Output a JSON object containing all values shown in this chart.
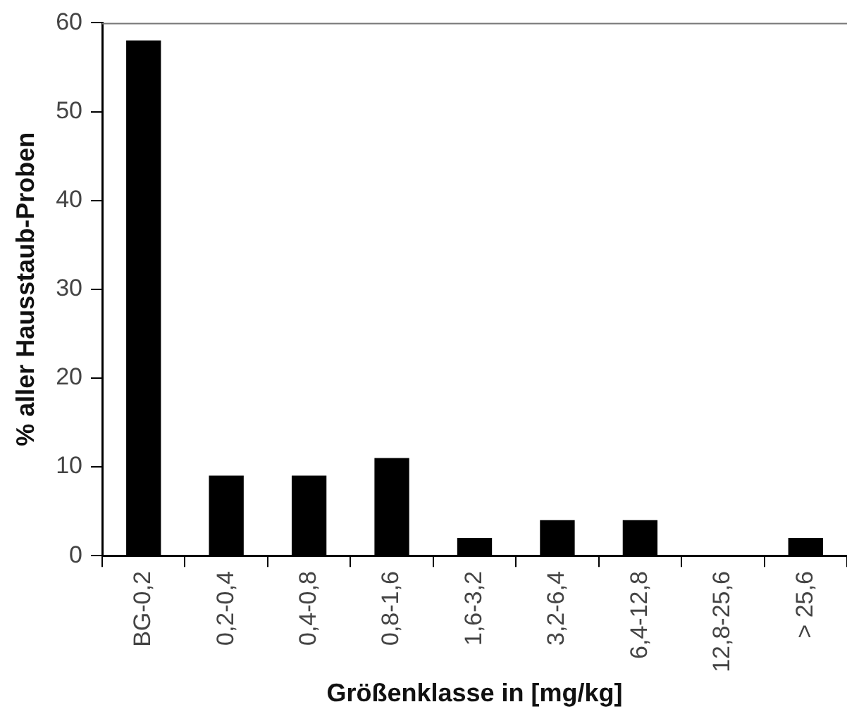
{
  "chart_data": {
    "type": "bar",
    "xlabel": "Größenklasse in [mg/kg]",
    "ylabel": "% aller Hausstaub-Proben",
    "categories": [
      "BG-0,2",
      "0,2-0,4",
      "0,4-0,8",
      "0,8-1,6",
      "1,6-3,2",
      "3,2-6,4",
      "6,4-12,8",
      "12,8-25,6",
      "> 25,6"
    ],
    "values": [
      58,
      9,
      9,
      11,
      2,
      4,
      4,
      0,
      2
    ],
    "color": "#000000",
    "ylim": [
      0,
      60
    ],
    "yticks": [
      0,
      10,
      20,
      30,
      40,
      50,
      60
    ],
    "grid": false,
    "legend": false
  }
}
